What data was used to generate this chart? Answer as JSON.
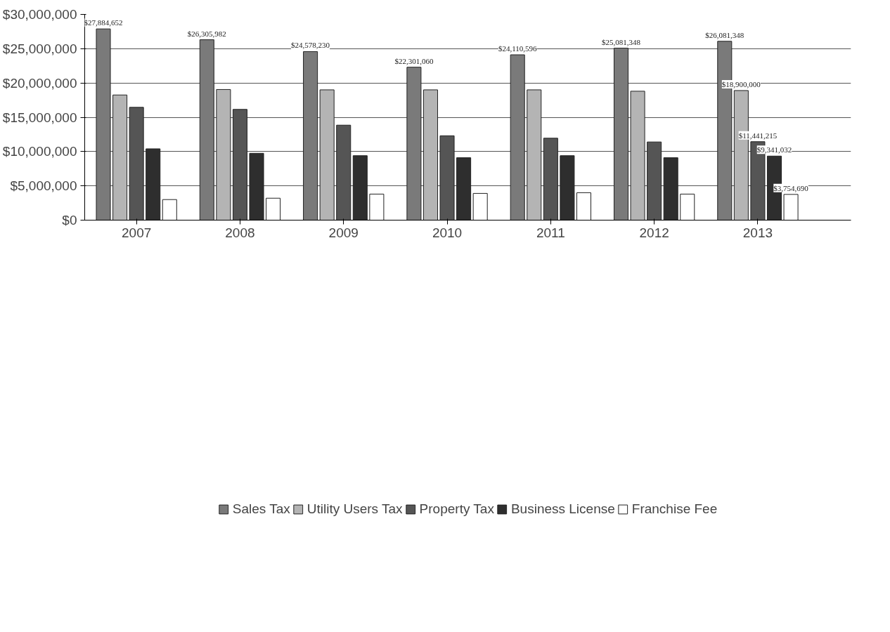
{
  "chart_data": {
    "type": "bar",
    "categories": [
      "2007",
      "2008",
      "2009",
      "2010",
      "2011",
      "2012",
      "2013"
    ],
    "series": [
      {
        "name": "Sales Tax",
        "color": "#7a7a7a",
        "values": [
          27884652,
          26305982,
          24578230,
          22301060,
          24110596,
          25081348,
          26081348
        ],
        "value_labels": [
          "$27,884,652",
          "$26,305,982",
          "$24,578,230",
          "$22,301,060",
          "$24,110,596",
          "$25,081,348",
          "$26,081,348"
        ]
      },
      {
        "name": "Utility Users Tax",
        "color": "#b4b4b4",
        "values": [
          18250000,
          19050000,
          19000000,
          19000000,
          19000000,
          18800000,
          18900000
        ],
        "value_labels": [
          null,
          null,
          null,
          null,
          null,
          null,
          "$18,900,000"
        ]
      },
      {
        "name": "Property Tax",
        "color": "#555555",
        "values": [
          16450000,
          16150000,
          13850000,
          12300000,
          11950000,
          11400000,
          11441215
        ],
        "value_labels": [
          null,
          null,
          null,
          null,
          null,
          null,
          "$11,441,215"
        ]
      },
      {
        "name": "Business License",
        "color": "#2e2e2e",
        "values": [
          10400000,
          9750000,
          9400000,
          9100000,
          9400000,
          9100000,
          9341032
        ],
        "value_labels": [
          null,
          null,
          null,
          null,
          null,
          null,
          "$9,341,032"
        ]
      },
      {
        "name": "Franchise Fee",
        "color": "#ffffff",
        "values": [
          3000000,
          3200000,
          3800000,
          3900000,
          4000000,
          3800000,
          3754690
        ],
        "value_labels": [
          null,
          null,
          null,
          null,
          null,
          null,
          "$3,754,690"
        ]
      }
    ],
    "ylim": [
      0,
      30000000
    ],
    "yticks": [
      {
        "value": 0,
        "label": "$0"
      },
      {
        "value": 5000000,
        "label": "$5,000,000"
      },
      {
        "value": 10000000,
        "label": "$10,000,000"
      },
      {
        "value": 15000000,
        "label": "$15,000,000"
      },
      {
        "value": 20000000,
        "label": "$20,000,000"
      },
      {
        "value": 25000000,
        "label": "$25,000,000"
      },
      {
        "value": 30000000,
        "label": "$30,000,000"
      }
    ],
    "grid": "y",
    "legend": "bottom"
  }
}
